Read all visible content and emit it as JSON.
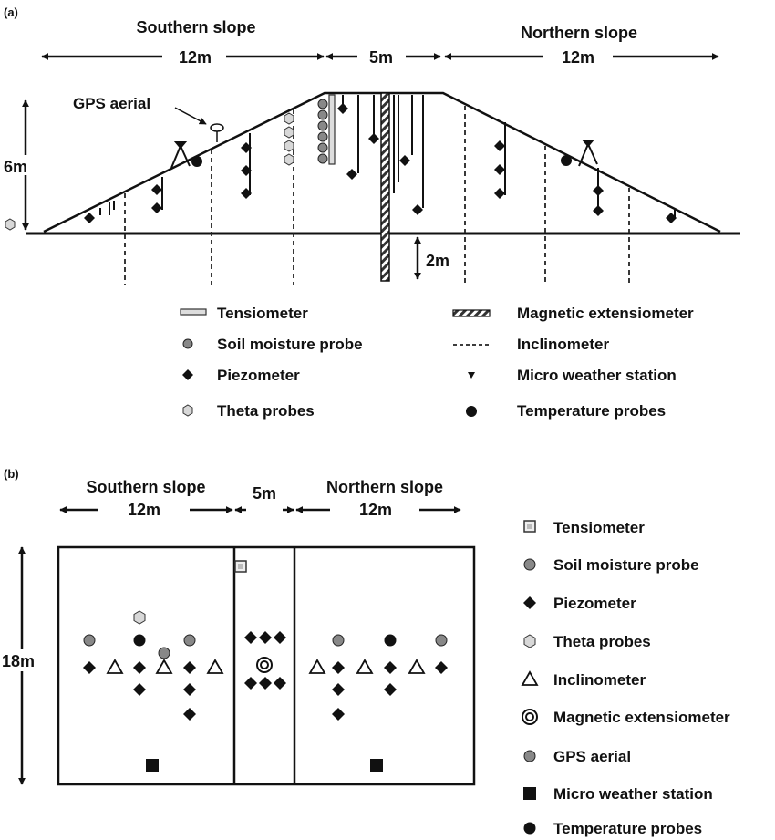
{
  "panel_a": {
    "panel_label": "(a)",
    "southern_slope": "Southern slope",
    "northern_slope": "Northern slope",
    "south_width": "12m",
    "crest_width": "5m",
    "north_width": "12m",
    "height": "6m",
    "depth": "2m",
    "gps_label": "GPS aerial",
    "legend": {
      "tensiometer": "Tensiometer",
      "soil_moisture_probe": "Soil moisture probe",
      "piezometer": "Piezometer",
      "theta_probes": "Theta probes",
      "magnetic_extensiometer": "Magnetic extensiometer",
      "inclinometer": "Inclinometer",
      "micro_weather_station": "Micro weather station",
      "temperature_probes": "Temperature probes"
    }
  },
  "panel_b": {
    "panel_label": "(b)",
    "southern_slope": "Southern slope",
    "northern_slope": "Northern slope",
    "south_width": "12m",
    "crest_width": "5m",
    "north_width": "12m",
    "length": "18m",
    "legend": {
      "tensiometer": "Tensiometer",
      "soil_moisture_probe": "Soil moisture probe",
      "piezometer": "Piezometer",
      "theta_probes": "Theta probes",
      "inclinometer": "Inclinometer",
      "magnetic_extensiometer": "Magnetic extensiometer",
      "gps_aerial": "GPS aerial",
      "micro_weather_station": "Micro weather station",
      "temperature_probes": "Temperature probes"
    }
  }
}
